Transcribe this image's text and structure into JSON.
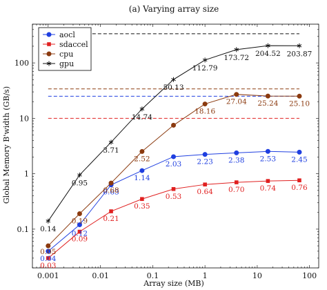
{
  "chart_data": {
    "type": "line",
    "title": "(a) Varying array size",
    "xlabel": "Array size (MB)",
    "ylabel": "Global Memory B'width (GB/s)",
    "xscale": "log",
    "yscale": "log",
    "xlim": [
      0.0005,
      150
    ],
    "ylim": [
      0.02,
      500
    ],
    "x_ticks": [
      0.001,
      0.01,
      0.1,
      1,
      10,
      100
    ],
    "x_tick_labels": [
      "0.001",
      "0.01",
      "0.1",
      "1",
      "10",
      "100"
    ],
    "y_ticks": [
      0.1,
      1,
      10,
      100
    ],
    "y_tick_labels": [
      "0.1",
      "1",
      "10",
      "100"
    ],
    "grid": false,
    "legend_position": "top-left",
    "x": [
      0.001,
      0.004,
      0.016,
      0.0625,
      0.25,
      1,
      4,
      16,
      64
    ],
    "series": [
      {
        "name": "aocl",
        "color": "#1f3fe0",
        "marker": "circle",
        "values": [
          0.04,
          0.12,
          0.63,
          1.14,
          2.03,
          2.23,
          2.38,
          2.53,
          2.45
        ],
        "labels": [
          "0.04",
          "0.12",
          "0.63",
          "1.14",
          "2.03",
          "2.23",
          "2.38",
          "2.53",
          "2.45"
        ],
        "peak_value": 25
      },
      {
        "name": "sdaccel",
        "color": "#e02020",
        "marker": "square",
        "values": [
          0.03,
          0.09,
          0.21,
          0.35,
          0.53,
          0.64,
          0.7,
          0.74,
          0.76
        ],
        "labels": [
          "0.03",
          "0.09",
          "0.21",
          "0.35",
          "0.53",
          "0.64",
          "0.70",
          "0.74",
          "0.76"
        ],
        "peak_value": 10
      },
      {
        "name": "cpu",
        "color": "#8b3a0f",
        "marker": "circle",
        "values": [
          0.05,
          0.19,
          0.68,
          2.52,
          7.5,
          18.16,
          27.04,
          25.24,
          25.1
        ],
        "labels": [
          "0.05",
          "0.19",
          "0.68",
          "2.52",
          "",
          "18.16",
          "27.04",
          "25.24",
          "25.10"
        ],
        "peak_value": 34
      },
      {
        "name": "gpu",
        "color": "#111111",
        "marker": "star",
        "values": [
          0.14,
          0.95,
          3.71,
          14.74,
          50.13,
          112.79,
          173.72,
          204.52,
          203.87
        ],
        "labels": [
          "0.14",
          "0.95",
          "3.71",
          "14.74",
          "50.13",
          "112.79",
          "173.72",
          "204.52",
          "203.87"
        ],
        "peak_value": 336
      }
    ]
  }
}
